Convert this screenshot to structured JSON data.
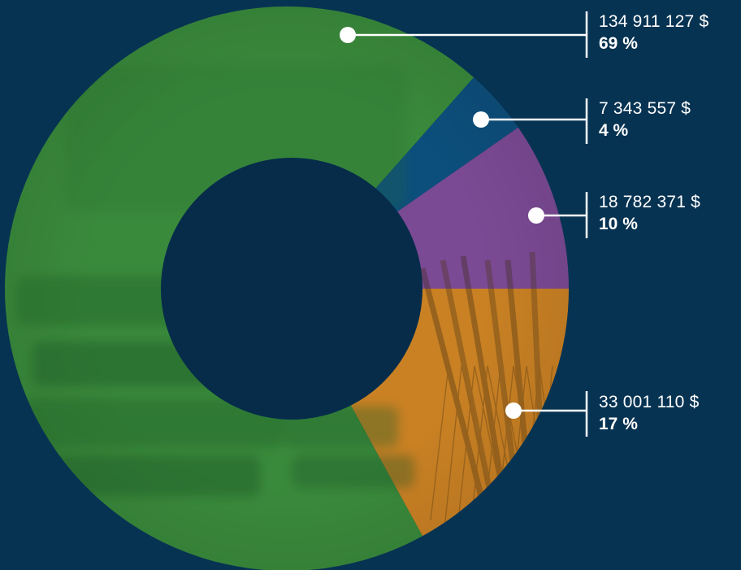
{
  "chart_data": {
    "type": "pie",
    "style": "donut with photographic background tinted per segment",
    "segments": [
      {
        "amount_label": "134 911 127 $",
        "percent_label": "69 %",
        "value": 134911127,
        "percent": 69,
        "color": "#3a8a3c"
      },
      {
        "amount_label": "7 343 557 $",
        "percent_label": "4 %",
        "value": 7343557,
        "percent": 4,
        "color": "#0d4f7c"
      },
      {
        "amount_label": "18 782 371 $",
        "percent_label": "10 %",
        "value": 18782371,
        "percent": 10,
        "color": "#7b4a94"
      },
      {
        "amount_label": "33 001 110 $",
        "percent_label": "17 %",
        "value": 33001110,
        "percent": 17,
        "color": "#c98124"
      }
    ],
    "legend": "callouts on the right, each connected to its segment by a line with a dot",
    "colors": {
      "background": "#073352",
      "hole": "#062c4a",
      "leader": "#ffffff"
    }
  }
}
